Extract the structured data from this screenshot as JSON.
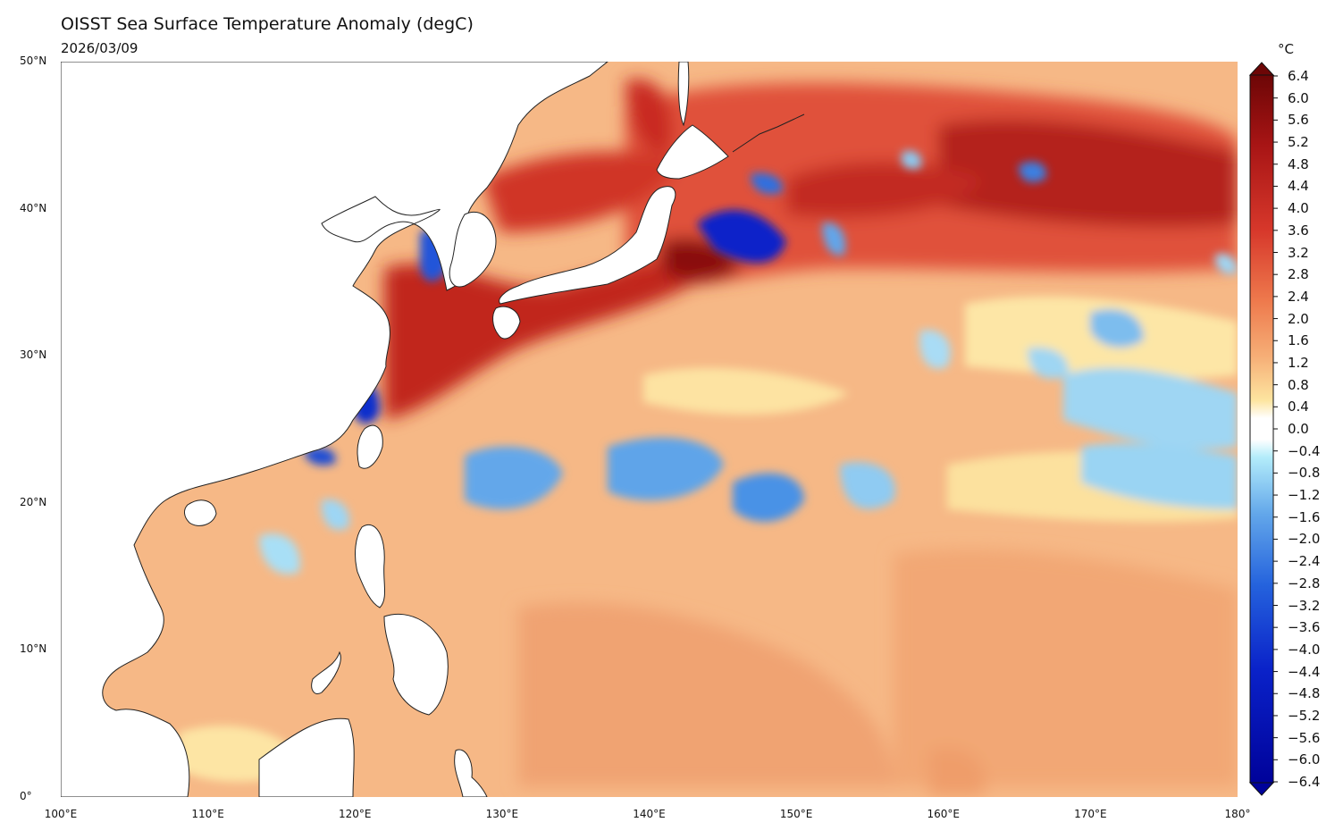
{
  "title": "OISST Sea Surface Temperature Anomaly (degC)",
  "date": "2026/03/09",
  "colors": {
    "deep_warm": "#7a0b0b",
    "warm": "#d7382b",
    "light_warm": "#f4b07a",
    "pale": "#fde9a8",
    "neutral": "#ffffff",
    "pale_cool": "#a8e2f5",
    "cool": "#3d7fe0",
    "deep_cool": "#0004a3",
    "land": "#ffffff",
    "coast": "#222222"
  },
  "lat_ticks": [
    "50°N",
    "40°N",
    "30°N",
    "20°N",
    "10°N",
    "0°"
  ],
  "lon_ticks": [
    "100°E",
    "110°E",
    "120°E",
    "130°E",
    "140°E",
    "150°E",
    "160°E",
    "170°E",
    "180°"
  ],
  "colorbar": {
    "unit": "°C",
    "levels": [
      "6.4",
      "6.0",
      "5.6",
      "5.2",
      "4.8",
      "4.4",
      "4.0",
      "3.6",
      "3.2",
      "2.8",
      "2.4",
      "2.0",
      "1.6",
      "1.2",
      "0.8",
      "0.4",
      "0.0",
      "−0.4",
      "−0.8",
      "−1.2",
      "−1.6",
      "−2.0",
      "−2.4",
      "−2.8",
      "−3.2",
      "−3.6",
      "−4.0",
      "−4.4",
      "−4.8",
      "−5.2",
      "−5.6",
      "−6.0",
      "−6.4"
    ],
    "min": -6.4,
    "max": 6.4,
    "extend": "both"
  }
}
